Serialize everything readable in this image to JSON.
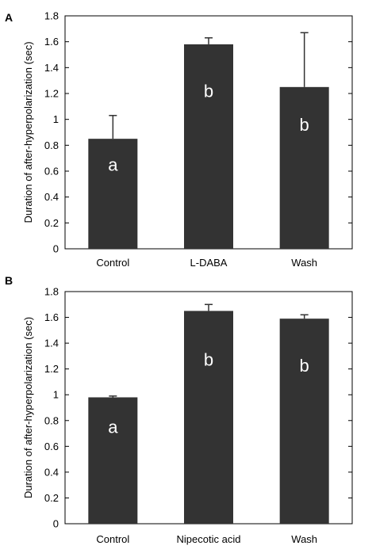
{
  "chart_data": [
    {
      "type": "bar",
      "panel_label": "A",
      "ylabel": "Duration of after-hyperpolarization (sec)",
      "xlabel": "",
      "categories": [
        "Control",
        "L-DABA",
        "Wash"
      ],
      "values": [
        0.85,
        1.58,
        1.25
      ],
      "errors": [
        0.18,
        0.05,
        0.42
      ],
      "bar_letters": [
        "a",
        "b",
        "b"
      ],
      "ylim": [
        0,
        1.8
      ],
      "yticks": [
        "0",
        "0.2",
        "0.4",
        "0.6",
        "0.8",
        "1",
        "1.2",
        "1.4",
        "1.6",
        "1.8"
      ],
      "bar_color": "#333333",
      "grid": false
    },
    {
      "type": "bar",
      "panel_label": "B",
      "ylabel": "Duration of after-hyperpolarization (sec)",
      "xlabel": "",
      "categories": [
        "Control",
        "Nipecotic acid",
        "Wash"
      ],
      "values": [
        0.98,
        1.65,
        1.59
      ],
      "errors": [
        0.01,
        0.05,
        0.03
      ],
      "bar_letters": [
        "a",
        "b",
        "b"
      ],
      "ylim": [
        0,
        1.8
      ],
      "yticks": [
        "0",
        "0.2",
        "0.4",
        "0.6",
        "0.8",
        "1",
        "1.2",
        "1.4",
        "1.6",
        "1.8"
      ],
      "bar_color": "#333333",
      "grid": false
    }
  ]
}
